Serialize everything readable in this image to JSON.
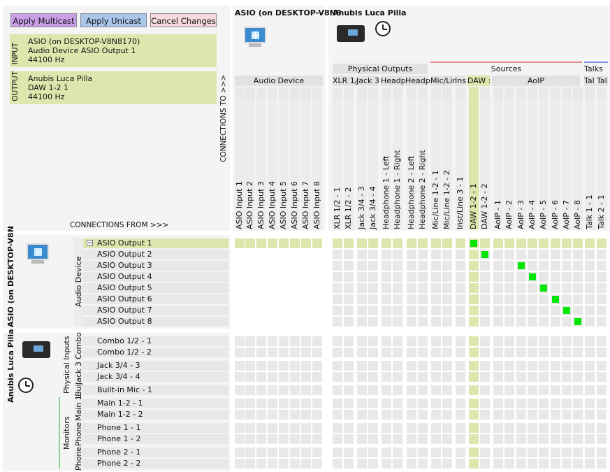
{
  "toolbar": {
    "apply_multicast": "Apply Multicast",
    "apply_unicast": "Apply Unicast",
    "cancel_changes": "Cancel Changes"
  },
  "input_box": {
    "label": "INPUT",
    "line1": "ASIO (on DESKTOP-V8N8170)",
    "line2": "Audio Device ASIO Output 1",
    "line3": "44100 Hz"
  },
  "output_box": {
    "label": "OUTPUT",
    "line1": "Anubis Luca Pilla",
    "line2": "DAW 1-2 1",
    "line3": "44100 Hz"
  },
  "connections_to": "CONNECTIONS TO >>>",
  "connections_from": "CONNECTIONS FROM >>>",
  "col_devices": {
    "asio": "ASIO (on DESKTOP-V8N8",
    "anubis": "Anubis Luca Pilla"
  },
  "col_groups": {
    "audio_device": "Audio Device",
    "physical_outputs": "Physical Outputs",
    "sources": "Sources",
    "talks": "Talks",
    "aoip": "AoIP"
  },
  "col_subgroups": [
    "XLR 1/",
    "Jack 3",
    "Headp",
    "Headp",
    "Mic/Lin",
    "Ins",
    "DAW :",
    "Tal",
    "Tal"
  ],
  "asio_columns": [
    "ASIO Input 1",
    "ASIO Input 2",
    "ASIO Input 3",
    "ASIO Input 4",
    "ASIO Input 5",
    "ASIO Input 6",
    "ASIO Input 7",
    "ASIO Input 8"
  ],
  "anubis_columns": [
    "XLR 1/2 - 1",
    "XLR 1/2 - 2",
    "Jack 3/4 - 3",
    "Jack 3/4 - 4",
    "Headphone 1 - Left",
    "Headphone 1 - Right",
    "Headphone 2 - Left",
    "Headphone 2 - Right",
    "Mic/Line 1-2 - 1",
    "Mic/Line 1-2 - 2",
    "Inst/Line 3 - 1",
    "DAW 1-2 - 1",
    "DAW 1-2 - 2",
    "AoIP - 1",
    "AoIP - 2",
    "AoIP - 3",
    "AoIP - 4",
    "AoIP - 5",
    "AoIP - 6",
    "AoIP - 7",
    "AoIP - 8",
    "Talk 1 - 1",
    "Talk 2 - 1"
  ],
  "row_devices": {
    "asio": "ASIO (on DESKTOP-V8N",
    "anubis": "Anubis Luca Pilla"
  },
  "row_groups": {
    "audio_device": "Audio Device",
    "physical_inputs": "Physical Inputs",
    "monitors": "Monitors"
  },
  "row_subgroups": [
    "Combo",
    "Jack 3",
    "Bui",
    "Main 1",
    "Phone",
    "Phone"
  ],
  "asio_rows": [
    "ASIO Output 1",
    "ASIO Output 2",
    "ASIO Output 3",
    "ASIO Output 4",
    "ASIO Output 5",
    "ASIO Output 6",
    "ASIO Output 7",
    "ASIO Output 8"
  ],
  "anubis_rows": [
    "Combo 1/2 - 1",
    "Combo 1/2 - 2",
    "Jack 3/4 - 3",
    "Jack 3/4 - 4",
    "Built-in Mic - 1",
    "Main 1-2 - 1",
    "Main 1-2 - 2",
    "Phone 1 - 1",
    "Phone 1 - 2",
    "Phone 2 - 1",
    "Phone 2 - 2"
  ],
  "connections": [
    {
      "row": "ASIO Output 1",
      "col": "DAW 1-2 - 1"
    },
    {
      "row": "ASIO Output 2",
      "col": "DAW 1-2 - 2"
    },
    {
      "row": "ASIO Output 3",
      "col": "AoIP - 3"
    },
    {
      "row": "ASIO Output 4",
      "col": "AoIP - 4"
    },
    {
      "row": "ASIO Output 5",
      "col": "AoIP - 5"
    },
    {
      "row": "ASIO Output 6",
      "col": "AoIP - 6"
    },
    {
      "row": "ASIO Output 7",
      "col": "AoIP - 7"
    },
    {
      "row": "ASIO Output 8",
      "col": "AoIP - 8"
    }
  ],
  "icons": {
    "collapse": "collapse-icon",
    "computer": "windows-computer-icon",
    "device": "audio-interface-icon",
    "clock": "clock-icon"
  },
  "colors": {
    "highlight": "#dfe6ad",
    "connected": "#00e600",
    "sources_bar": "#e88a8a",
    "talks_bar": "#8a8ae8",
    "apply_multicast": "#c9a0e8",
    "apply_unicast": "#aac6ea",
    "cancel": "#f6d9dc"
  }
}
